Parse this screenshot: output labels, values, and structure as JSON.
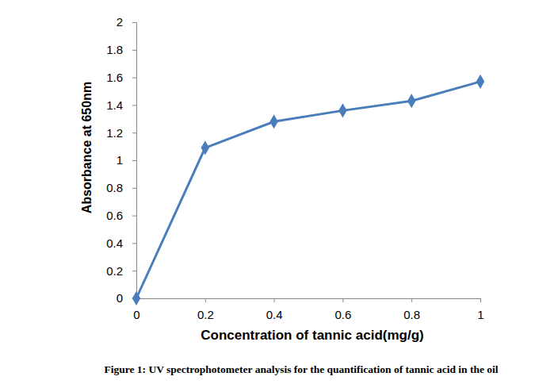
{
  "chart_data": {
    "type": "line",
    "title": "Figure 1: UV spectrophotometer analysis for the quantification of tannic acid in the oil",
    "x_label": "Concentration of tannic acid(mg/g)",
    "y_label": "Absorbance at 650nm",
    "x": [
      0,
      0.2,
      0.4,
      0.6,
      0.8,
      1
    ],
    "values": [
      0,
      1.09,
      1.28,
      1.36,
      1.43,
      1.57
    ],
    "color": "#4a7ebb",
    "marker": "diamond",
    "line_style": "solid",
    "xlim": [
      0,
      1
    ],
    "xticks": [
      0,
      0.2,
      0.4,
      0.6,
      0.8,
      1
    ],
    "ylim": [
      0,
      2
    ],
    "yticks": [
      0,
      0.2,
      0.4,
      0.6,
      0.8,
      1,
      1.2,
      1.4,
      1.6,
      1.8,
      2
    ],
    "grid": false
  }
}
